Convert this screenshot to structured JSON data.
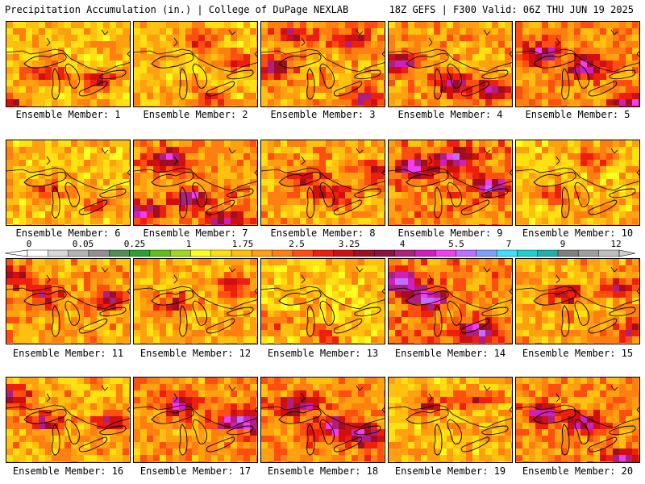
{
  "header": {
    "left": "Precipitation Accumulation (in.) | College of DuPage NEXLAB",
    "right": "18Z GEFS | F300 Valid: 06Z THU JUN 19 2025"
  },
  "panel_label_prefix": "Ensemble Member: ",
  "members": [
    {
      "number": "1",
      "intensity": 0.45,
      "hot": [
        [
          0.3,
          0.55
        ],
        [
          0.7,
          0.65
        ],
        [
          0.05,
          0.9
        ]
      ]
    },
    {
      "number": "2",
      "intensity": 0.4,
      "hot": [
        [
          0.5,
          0.2
        ],
        [
          0.8,
          0.45
        ],
        [
          0.6,
          0.85
        ]
      ]
    },
    {
      "number": "3",
      "intensity": 0.6,
      "hot": [
        [
          0.25,
          0.15
        ],
        [
          0.7,
          0.2
        ],
        [
          0.1,
          0.5
        ],
        [
          0.8,
          0.85
        ]
      ]
    },
    {
      "number": "4",
      "intensity": 0.65,
      "hot": [
        [
          0.1,
          0.45
        ],
        [
          0.5,
          0.7
        ],
        [
          0.8,
          0.75
        ]
      ]
    },
    {
      "number": "5",
      "intensity": 0.75,
      "hot": [
        [
          0.2,
          0.35
        ],
        [
          0.55,
          0.5
        ],
        [
          0.9,
          0.9
        ]
      ]
    },
    {
      "number": "6",
      "intensity": 0.4,
      "hot": [
        [
          0.3,
          0.55
        ],
        [
          0.75,
          0.7
        ]
      ]
    },
    {
      "number": "7",
      "intensity": 0.75,
      "hot": [
        [
          0.25,
          0.2
        ],
        [
          0.45,
          0.65
        ],
        [
          0.7,
          0.9
        ],
        [
          0.05,
          0.8
        ]
      ]
    },
    {
      "number": "8",
      "intensity": 0.55,
      "hot": [
        [
          0.35,
          0.45
        ],
        [
          0.9,
          0.35
        ],
        [
          0.55,
          0.6
        ]
      ]
    },
    {
      "number": "9",
      "intensity": 0.8,
      "hot": [
        [
          0.2,
          0.3
        ],
        [
          0.5,
          0.2
        ],
        [
          0.8,
          0.5
        ]
      ]
    },
    {
      "number": "10",
      "intensity": 0.4,
      "hot": [
        [
          0.3,
          0.6
        ],
        [
          0.6,
          0.2
        ]
      ]
    },
    {
      "number": "11",
      "intensity": 0.6,
      "hot": [
        [
          0.05,
          0.2
        ],
        [
          0.3,
          0.4
        ],
        [
          0.8,
          0.45
        ]
      ]
    },
    {
      "number": "12",
      "intensity": 0.5,
      "hot": [
        [
          0.3,
          0.5
        ],
        [
          0.8,
          0.3
        ]
      ]
    },
    {
      "number": "13",
      "intensity": 0.35,
      "hot": [
        [
          0.1,
          0.7
        ],
        [
          0.5,
          0.85
        ]
      ]
    },
    {
      "number": "14",
      "intensity": 0.85,
      "hot": [
        [
          0.3,
          0.45
        ],
        [
          0.7,
          0.8
        ],
        [
          0.1,
          0.25
        ]
      ]
    },
    {
      "number": "15",
      "intensity": 0.55,
      "hot": [
        [
          0.4,
          0.4
        ],
        [
          0.8,
          0.3
        ],
        [
          0.9,
          0.8
        ]
      ]
    },
    {
      "number": "16",
      "intensity": 0.55,
      "hot": [
        [
          0.05,
          0.2
        ],
        [
          0.3,
          0.5
        ],
        [
          0.8,
          0.5
        ]
      ]
    },
    {
      "number": "17",
      "intensity": 0.7,
      "hot": [
        [
          0.35,
          0.3
        ],
        [
          0.75,
          0.5
        ],
        [
          0.95,
          0.5
        ]
      ]
    },
    {
      "number": "18",
      "intensity": 0.75,
      "hot": [
        [
          0.3,
          0.3
        ],
        [
          0.55,
          0.55
        ],
        [
          0.8,
          0.65
        ]
      ]
    },
    {
      "number": "19",
      "intensity": 0.45,
      "hot": [
        [
          0.3,
          0.3
        ],
        [
          0.7,
          0.25
        ]
      ]
    },
    {
      "number": "20",
      "intensity": 0.75,
      "hot": [
        [
          0.2,
          0.4
        ],
        [
          0.55,
          0.5
        ],
        [
          0.85,
          0.9
        ]
      ]
    }
  ],
  "colorbar": {
    "labels": [
      "0",
      "0.05",
      "0.25",
      "1",
      "1.75",
      "2.5",
      "3.25",
      "4",
      "5.5",
      "7",
      "9",
      "12"
    ],
    "colors": [
      "#ffffff",
      "#d8d8d8",
      "#b4b4b4",
      "#909090",
      "#4f8f4f",
      "#2f9f2f",
      "#5fbf1f",
      "#9fd81f",
      "#ffff1f",
      "#ffe010",
      "#ffc010",
      "#ffa010",
      "#ff7f10",
      "#ff4f10",
      "#ef1f10",
      "#cf0f10",
      "#a00f20",
      "#8f0f3f",
      "#af1f7f",
      "#cf1fbf",
      "#ef3fef",
      "#bf6fff",
      "#7f9fff",
      "#3fdfff",
      "#1fcfcf",
      "#1fafaf",
      "#7f7f7f",
      "#9f9f9f",
      "#bfbfbf"
    ]
  },
  "field_colors": [
    "#2f9f2f",
    "#5fbf1f",
    "#9fd81f",
    "#ffff1f",
    "#ffe010",
    "#ffc010",
    "#ffa010",
    "#ff7f10",
    "#ff4f10",
    "#ef1f10",
    "#cf0f10",
    "#a00f20",
    "#af1f7f",
    "#cf1fbf",
    "#ef3fef",
    "#bf6fff"
  ]
}
